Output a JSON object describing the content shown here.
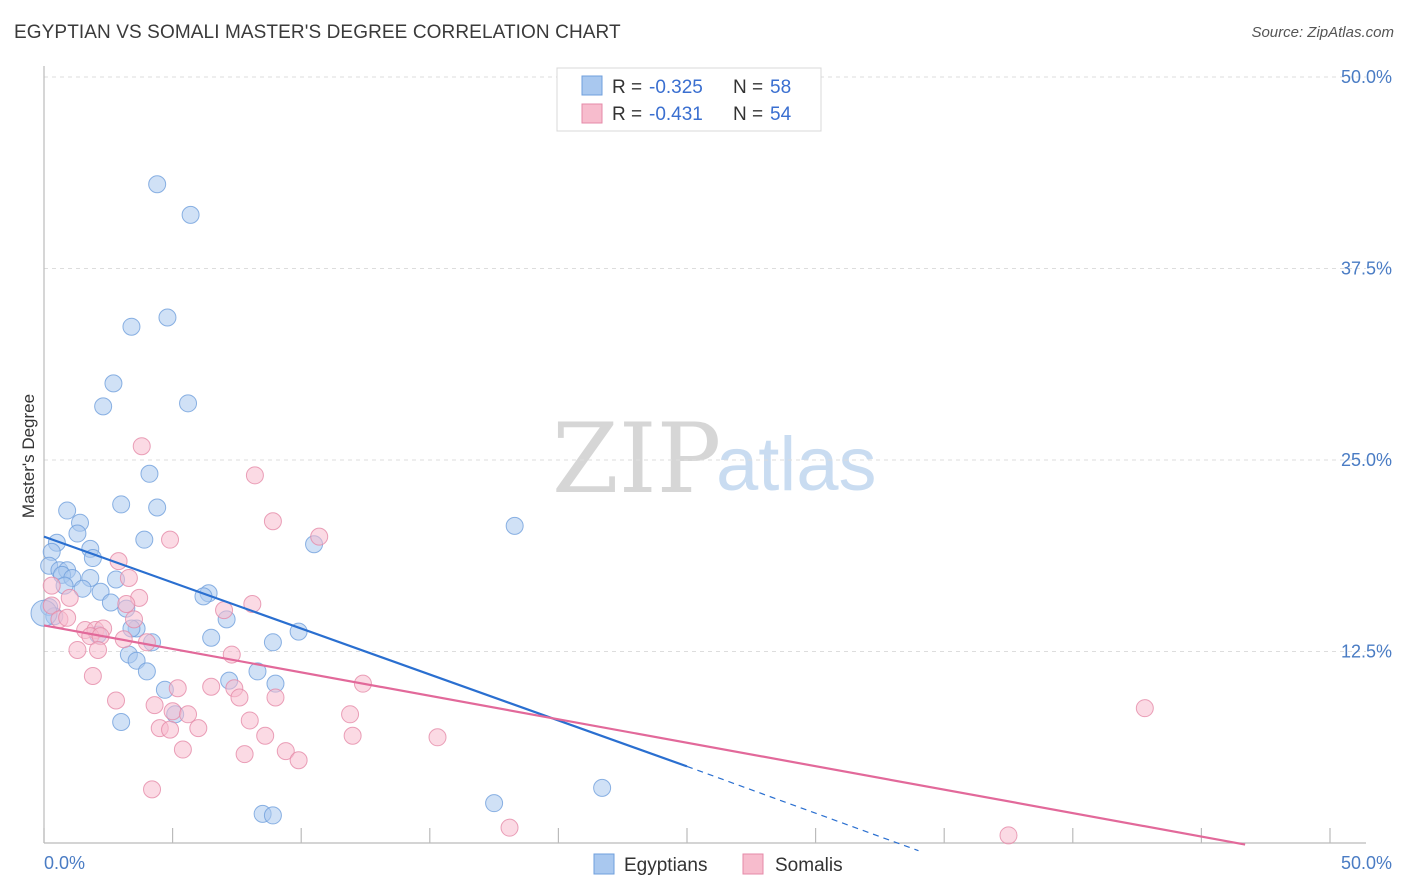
{
  "title": "EGYPTIAN VS SOMALI MASTER'S DEGREE CORRELATION CHART",
  "source": "Source: ZipAtlas.com",
  "watermark": {
    "zip": "ZIP",
    "atlas": "atlas"
  },
  "colors": {
    "blue_fill": "#a9c8ef",
    "blue_stroke": "#6f9fdc",
    "blue_line": "#2a6fd0",
    "pink_fill": "#f7bccd",
    "pink_stroke": "#e58aa8",
    "pink_line": "#e2699a",
    "grid": "#dddddd",
    "tick_text": "#4a7cc4"
  },
  "legend": {
    "rows": [
      {
        "r_label": "R =",
        "r_value": "-0.325",
        "n_label": "N =",
        "n_value": "58"
      },
      {
        "r_label": "R =",
        "r_value": "-0.431",
        "n_label": "N =",
        "n_value": "54"
      }
    ]
  },
  "chart_data": {
    "type": "scatter",
    "title": "EGYPTIAN VS SOMALI MASTER'S DEGREE CORRELATION CHART",
    "xlabel": "",
    "ylabel": "Master's Degree",
    "xlim": [
      0,
      50
    ],
    "ylim": [
      0,
      50
    ],
    "x_tick_labels": [
      "0.0%",
      "50.0%"
    ],
    "y_ticks": [
      12.5,
      25.0,
      37.5,
      50.0
    ],
    "y_tick_labels": [
      "12.5%",
      "25.0%",
      "37.5%",
      "50.0%"
    ],
    "series": [
      {
        "name": "Egyptians",
        "R": -0.325,
        "N": 58,
        "trend": {
          "x0": 0,
          "y0": 20.0,
          "x1": 25,
          "y1": 5.0,
          "dash_to_x": 34,
          "dash_to_y": -0.5
        },
        "points": [
          [
            4.4,
            43.0
          ],
          [
            5.7,
            41.0
          ],
          [
            4.8,
            34.3
          ],
          [
            3.4,
            33.7
          ],
          [
            2.7,
            30.0
          ],
          [
            2.3,
            28.5
          ],
          [
            5.6,
            28.7
          ],
          [
            4.1,
            24.1
          ],
          [
            3.0,
            22.1
          ],
          [
            4.4,
            21.9
          ],
          [
            0.9,
            21.7
          ],
          [
            1.4,
            20.9
          ],
          [
            18.3,
            20.7
          ],
          [
            1.3,
            20.2
          ],
          [
            3.9,
            19.8
          ],
          [
            0.5,
            19.6
          ],
          [
            10.5,
            19.5
          ],
          [
            0.3,
            19.0
          ],
          [
            1.8,
            19.2
          ],
          [
            1.9,
            18.6
          ],
          [
            0.2,
            18.1
          ],
          [
            0.6,
            17.8
          ],
          [
            0.9,
            17.8
          ],
          [
            0.7,
            17.5
          ],
          [
            1.1,
            17.3
          ],
          [
            1.8,
            17.3
          ],
          [
            2.8,
            17.2
          ],
          [
            0.8,
            16.8
          ],
          [
            1.5,
            16.6
          ],
          [
            2.2,
            16.4
          ],
          [
            6.4,
            16.3
          ],
          [
            6.2,
            16.1
          ],
          [
            0.2,
            15.4
          ],
          [
            2.6,
            15.7
          ],
          [
            3.2,
            15.3
          ],
          [
            0.4,
            14.8
          ],
          [
            7.1,
            14.6
          ],
          [
            3.6,
            14.0
          ],
          [
            3.4,
            14.0
          ],
          [
            2.1,
            13.6
          ],
          [
            9.9,
            13.8
          ],
          [
            6.5,
            13.4
          ],
          [
            4.2,
            13.1
          ],
          [
            8.9,
            13.1
          ],
          [
            3.3,
            12.3
          ],
          [
            3.6,
            11.9
          ],
          [
            4.0,
            11.2
          ],
          [
            8.3,
            11.2
          ],
          [
            7.2,
            10.6
          ],
          [
            9.0,
            10.4
          ],
          [
            4.7,
            10.0
          ],
          [
            5.1,
            8.4
          ],
          [
            3.0,
            7.9
          ],
          [
            17.5,
            2.6
          ],
          [
            21.7,
            3.6
          ],
          [
            8.5,
            1.9
          ],
          [
            8.9,
            1.8
          ],
          [
            0.0,
            15.0
          ]
        ]
      },
      {
        "name": "Somalis",
        "R": -0.431,
        "N": 54,
        "trend": {
          "x0": 0,
          "y0": 14.2,
          "x1": 46.7,
          "y1": -0.1
        },
        "points": [
          [
            3.8,
            25.9
          ],
          [
            8.2,
            24.0
          ],
          [
            8.9,
            21.0
          ],
          [
            10.7,
            20.0
          ],
          [
            4.9,
            19.8
          ],
          [
            2.9,
            18.4
          ],
          [
            0.3,
            16.8
          ],
          [
            3.3,
            17.3
          ],
          [
            1.0,
            16.0
          ],
          [
            0.3,
            15.5
          ],
          [
            3.7,
            16.0
          ],
          [
            8.1,
            15.6
          ],
          [
            7.0,
            15.2
          ],
          [
            3.2,
            15.6
          ],
          [
            0.6,
            14.6
          ],
          [
            0.9,
            14.7
          ],
          [
            3.5,
            14.6
          ],
          [
            1.6,
            13.9
          ],
          [
            2.0,
            13.9
          ],
          [
            2.3,
            14.0
          ],
          [
            1.8,
            13.5
          ],
          [
            2.2,
            13.5
          ],
          [
            3.1,
            13.3
          ],
          [
            4.0,
            13.1
          ],
          [
            1.3,
            12.6
          ],
          [
            2.1,
            12.6
          ],
          [
            7.3,
            12.3
          ],
          [
            1.9,
            10.9
          ],
          [
            12.4,
            10.4
          ],
          [
            5.2,
            10.1
          ],
          [
            6.5,
            10.2
          ],
          [
            7.4,
            10.1
          ],
          [
            9.0,
            9.5
          ],
          [
            7.6,
            9.5
          ],
          [
            2.8,
            9.3
          ],
          [
            4.3,
            9.0
          ],
          [
            5.0,
            8.6
          ],
          [
            5.6,
            8.4
          ],
          [
            11.9,
            8.4
          ],
          [
            42.8,
            8.8
          ],
          [
            8.0,
            8.0
          ],
          [
            4.5,
            7.5
          ],
          [
            6.0,
            7.5
          ],
          [
            4.9,
            7.4
          ],
          [
            8.6,
            7.0
          ],
          [
            12.0,
            7.0
          ],
          [
            15.3,
            6.9
          ],
          [
            5.4,
            6.1
          ],
          [
            9.4,
            6.0
          ],
          [
            7.8,
            5.8
          ],
          [
            9.9,
            5.4
          ],
          [
            4.2,
            3.5
          ],
          [
            18.1,
            1.0
          ],
          [
            37.5,
            0.5
          ]
        ]
      }
    ]
  },
  "bottom_legend": {
    "items": [
      "Egyptians",
      "Somalis"
    ]
  }
}
